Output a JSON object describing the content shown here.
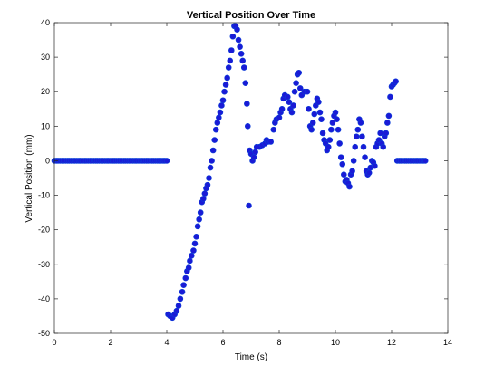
{
  "chart_data": {
    "type": "scatter",
    "title": "Vertical Position Over Time",
    "xlabel": "Time (s)",
    "ylabel": "Vertical Position (mm)",
    "xlim": [
      0,
      14
    ],
    "ylim": [
      -50,
      40
    ],
    "xticks": [
      "0",
      "2",
      "4",
      "6",
      "8",
      "10",
      "12",
      "14"
    ],
    "yticks": [
      "40",
      "30",
      "20",
      "10",
      "0",
      "-10",
      "-20",
      "-30",
      "-40",
      "-50"
    ],
    "grid": false,
    "marker_color": "#1a1ad6",
    "marker_edge": "#0b3fd8",
    "points": [
      [
        0.0,
        0
      ],
      [
        0.07,
        0
      ],
      [
        0.13,
        0
      ],
      [
        0.2,
        0
      ],
      [
        0.27,
        0
      ],
      [
        0.33,
        0
      ],
      [
        0.4,
        0
      ],
      [
        0.47,
        0
      ],
      [
        0.53,
        0
      ],
      [
        0.6,
        0
      ],
      [
        0.67,
        0
      ],
      [
        0.73,
        0
      ],
      [
        0.8,
        0
      ],
      [
        0.87,
        0
      ],
      [
        0.93,
        0
      ],
      [
        1.0,
        0
      ],
      [
        1.07,
        0
      ],
      [
        1.13,
        0
      ],
      [
        1.2,
        0
      ],
      [
        1.27,
        0
      ],
      [
        1.33,
        0
      ],
      [
        1.4,
        0
      ],
      [
        1.47,
        0
      ],
      [
        1.53,
        0
      ],
      [
        1.6,
        0
      ],
      [
        1.67,
        0
      ],
      [
        1.73,
        0
      ],
      [
        1.8,
        0
      ],
      [
        1.87,
        0
      ],
      [
        1.93,
        0
      ],
      [
        2.0,
        0
      ],
      [
        2.07,
        0
      ],
      [
        2.13,
        0
      ],
      [
        2.2,
        0
      ],
      [
        2.27,
        0
      ],
      [
        2.33,
        0
      ],
      [
        2.4,
        0
      ],
      [
        2.47,
        0
      ],
      [
        2.53,
        0
      ],
      [
        2.6,
        0
      ],
      [
        2.67,
        0
      ],
      [
        2.73,
        0
      ],
      [
        2.8,
        0
      ],
      [
        2.87,
        0
      ],
      [
        2.93,
        0
      ],
      [
        3.0,
        0
      ],
      [
        3.07,
        0
      ],
      [
        3.13,
        0
      ],
      [
        3.2,
        0
      ],
      [
        3.27,
        0
      ],
      [
        3.33,
        0
      ],
      [
        3.4,
        0
      ],
      [
        3.47,
        0
      ],
      [
        3.53,
        0
      ],
      [
        3.6,
        0
      ],
      [
        3.67,
        0
      ],
      [
        3.73,
        0
      ],
      [
        3.8,
        0
      ],
      [
        3.87,
        0
      ],
      [
        3.93,
        0
      ],
      [
        4.0,
        0
      ],
      [
        4.05,
        -44.5
      ],
      [
        4.12,
        -45
      ],
      [
        4.2,
        -45.5
      ],
      [
        4.28,
        -44.5
      ],
      [
        4.35,
        -43.5
      ],
      [
        4.42,
        -42
      ],
      [
        4.48,
        -40
      ],
      [
        4.55,
        -38
      ],
      [
        4.6,
        -36
      ],
      [
        4.67,
        -34
      ],
      [
        4.72,
        -32
      ],
      [
        4.78,
        -31
      ],
      [
        4.82,
        -29
      ],
      [
        4.88,
        -27.5
      ],
      [
        4.95,
        -26
      ],
      [
        5.0,
        -24
      ],
      [
        5.05,
        -22
      ],
      [
        5.1,
        -19
      ],
      [
        5.15,
        -17
      ],
      [
        5.2,
        -15
      ],
      [
        5.25,
        -12
      ],
      [
        5.3,
        -11
      ],
      [
        5.35,
        -9.5
      ],
      [
        5.4,
        -8
      ],
      [
        5.45,
        -7
      ],
      [
        5.5,
        -5
      ],
      [
        5.55,
        -2
      ],
      [
        5.6,
        0
      ],
      [
        5.65,
        3
      ],
      [
        5.7,
        6
      ],
      [
        5.75,
        9
      ],
      [
        5.8,
        11
      ],
      [
        5.85,
        12.5
      ],
      [
        5.9,
        14
      ],
      [
        5.95,
        16
      ],
      [
        6.0,
        17.5
      ],
      [
        6.05,
        20
      ],
      [
        6.1,
        22
      ],
      [
        6.15,
        24
      ],
      [
        6.2,
        27
      ],
      [
        6.25,
        29
      ],
      [
        6.3,
        32
      ],
      [
        6.35,
        36
      ],
      [
        6.4,
        39
      ],
      [
        6.45,
        39
      ],
      [
        6.5,
        38
      ],
      [
        6.55,
        35
      ],
      [
        6.6,
        33
      ],
      [
        6.65,
        31
      ],
      [
        6.7,
        29
      ],
      [
        6.75,
        27
      ],
      [
        6.8,
        22.5
      ],
      [
        6.85,
        16.5
      ],
      [
        6.88,
        10
      ],
      [
        6.92,
        -13
      ],
      [
        6.95,
        3
      ],
      [
        7.0,
        2
      ],
      [
        7.05,
        0
      ],
      [
        7.1,
        1
      ],
      [
        7.15,
        2.5
      ],
      [
        7.2,
        4
      ],
      [
        7.3,
        4
      ],
      [
        7.4,
        4.5
      ],
      [
        7.5,
        5
      ],
      [
        7.55,
        6
      ],
      [
        7.6,
        5.5
      ],
      [
        7.7,
        5.5
      ],
      [
        7.8,
        9
      ],
      [
        7.85,
        11
      ],
      [
        7.9,
        12
      ],
      [
        8.0,
        12.5
      ],
      [
        8.05,
        14
      ],
      [
        8.1,
        15
      ],
      [
        8.15,
        18
      ],
      [
        8.2,
        19
      ],
      [
        8.3,
        18.5
      ],
      [
        8.35,
        17
      ],
      [
        8.4,
        15
      ],
      [
        8.45,
        14
      ],
      [
        8.5,
        16
      ],
      [
        8.55,
        20
      ],
      [
        8.6,
        22.5
      ],
      [
        8.65,
        25
      ],
      [
        8.7,
        25.5
      ],
      [
        8.75,
        21
      ],
      [
        8.8,
        19
      ],
      [
        8.9,
        20
      ],
      [
        9.0,
        20
      ],
      [
        9.05,
        15
      ],
      [
        9.1,
        10
      ],
      [
        9.15,
        9
      ],
      [
        9.2,
        11
      ],
      [
        9.25,
        13.5
      ],
      [
        9.3,
        16
      ],
      [
        9.35,
        18
      ],
      [
        9.4,
        17
      ],
      [
        9.45,
        14
      ],
      [
        9.5,
        12
      ],
      [
        9.55,
        8
      ],
      [
        9.6,
        6
      ],
      [
        9.65,
        5
      ],
      [
        9.7,
        3
      ],
      [
        9.75,
        4
      ],
      [
        9.8,
        6
      ],
      [
        9.85,
        9
      ],
      [
        9.9,
        11
      ],
      [
        9.95,
        13
      ],
      [
        10.0,
        14
      ],
      [
        10.05,
        12
      ],
      [
        10.1,
        9
      ],
      [
        10.15,
        5
      ],
      [
        10.2,
        1
      ],
      [
        10.25,
        -1
      ],
      [
        10.3,
        -4
      ],
      [
        10.35,
        -6
      ],
      [
        10.4,
        -5.5
      ],
      [
        10.45,
        -6.5
      ],
      [
        10.5,
        -7.5
      ],
      [
        10.55,
        -4
      ],
      [
        10.6,
        -3
      ],
      [
        10.65,
        0
      ],
      [
        10.7,
        4
      ],
      [
        10.75,
        7
      ],
      [
        10.8,
        9
      ],
      [
        10.85,
        12
      ],
      [
        10.9,
        11
      ],
      [
        10.95,
        7
      ],
      [
        11.0,
        4
      ],
      [
        11.05,
        1
      ],
      [
        11.1,
        -3
      ],
      [
        11.15,
        -4
      ],
      [
        11.2,
        -3.5
      ],
      [
        11.25,
        -2
      ],
      [
        11.3,
        0
      ],
      [
        11.35,
        -0.5
      ],
      [
        11.4,
        -1.5
      ],
      [
        11.45,
        4
      ],
      [
        11.5,
        5
      ],
      [
        11.55,
        6
      ],
      [
        11.6,
        8
      ],
      [
        11.65,
        5
      ],
      [
        11.7,
        4
      ],
      [
        11.75,
        7
      ],
      [
        11.8,
        8
      ],
      [
        11.85,
        11
      ],
      [
        11.9,
        13
      ],
      [
        11.95,
        18.5
      ],
      [
        12.0,
        21.5
      ],
      [
        12.05,
        22
      ],
      [
        12.1,
        22.5
      ],
      [
        12.15,
        23
      ],
      [
        12.2,
        0
      ],
      [
        12.27,
        0
      ],
      [
        12.33,
        0
      ],
      [
        12.4,
        0
      ],
      [
        12.47,
        0
      ],
      [
        12.53,
        0
      ],
      [
        12.6,
        0
      ],
      [
        12.67,
        0
      ],
      [
        12.73,
        0
      ],
      [
        12.8,
        0
      ],
      [
        12.87,
        0
      ],
      [
        12.93,
        0
      ],
      [
        13.0,
        0
      ],
      [
        13.07,
        0
      ],
      [
        13.13,
        0
      ],
      [
        13.2,
        0
      ]
    ]
  }
}
